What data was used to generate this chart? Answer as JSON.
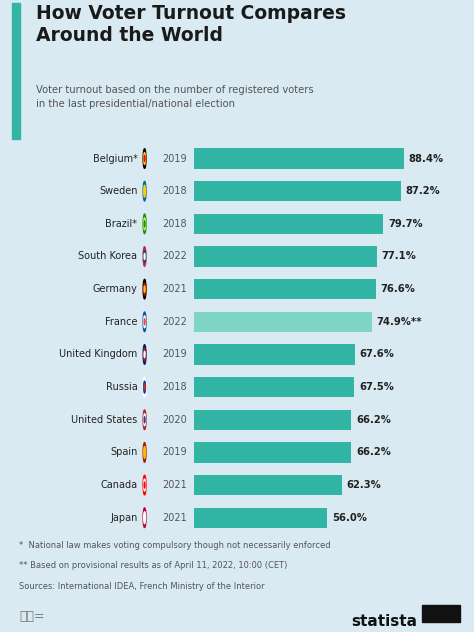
{
  "title": "How Voter Turnout Compares\nAround the World",
  "subtitle": "Voter turnout based on the number of registered voters\nin the last presidential/national election",
  "bg_color": "#daeaf3",
  "title_bar_color": "#32b5a4",
  "bar_color_dark": "#32b5a4",
  "bar_color_light": "#7fd4c8",
  "countries": [
    {
      "name": "Belgium*",
      "year": "2019",
      "value": 88.4,
      "label": "88.4%",
      "light": false
    },
    {
      "name": "Sweden",
      "year": "2018",
      "value": 87.2,
      "label": "87.2%",
      "light": false
    },
    {
      "name": "Brazil*",
      "year": "2018",
      "value": 79.7,
      "label": "79.7%",
      "light": false
    },
    {
      "name": "South Korea",
      "year": "2022",
      "value": 77.1,
      "label": "77.1%",
      "light": false
    },
    {
      "name": "Germany",
      "year": "2021",
      "value": 76.6,
      "label": "76.6%",
      "light": false
    },
    {
      "name": "France",
      "year": "2022",
      "value": 74.9,
      "label": "74.9%**",
      "light": true
    },
    {
      "name": "United Kingdom",
      "year": "2019",
      "value": 67.6,
      "label": "67.6%",
      "light": false
    },
    {
      "name": "Russia",
      "year": "2018",
      "value": 67.5,
      "label": "67.5%",
      "light": false
    },
    {
      "name": "United States",
      "year": "2020",
      "value": 66.2,
      "label": "66.2%",
      "light": false
    },
    {
      "name": "Spain",
      "year": "2019",
      "value": 66.2,
      "label": "66.2%",
      "light": false
    },
    {
      "name": "Canada",
      "year": "2021",
      "value": 62.3,
      "label": "62.3%",
      "light": false
    },
    {
      "name": "Japan",
      "year": "2021",
      "value": 56.0,
      "label": "56.0%",
      "light": false
    }
  ],
  "footnote1": "*  National law makes voting compulsory though not necessarily enforced",
  "footnote2": "** Based on provisional results as of April 11, 2022, 10:00 (CET)",
  "footnote3": "Sources: International IDEA, French Ministry of the Interior",
  "flag_colors": [
    [
      "#000000",
      "#FFD700",
      "#FF0000"
    ],
    [
      "#006AA7",
      "#FECC02"
    ],
    [
      "#009C3B",
      "#FFDF00",
      "#009C3B"
    ],
    [
      "#CD2E3A",
      "#0047A0",
      "#FFFFFF"
    ],
    [
      "#000000",
      "#DD0000",
      "#FFCE00"
    ],
    [
      "#0055A4",
      "#FFFFFF",
      "#EF4135"
    ],
    [
      "#012169",
      "#C8102E",
      "#FFFFFF"
    ],
    [
      "#FFFFFF",
      "#0039A6",
      "#D52B1E"
    ],
    [
      "#B22234",
      "#FFFFFF",
      "#3C3B6E"
    ],
    [
      "#AA151B",
      "#F1BF00"
    ],
    [
      "#FF0000",
      "#FFFFFF",
      "#FF0000"
    ],
    [
      "#BC002D",
      "#FFFFFF"
    ]
  ]
}
